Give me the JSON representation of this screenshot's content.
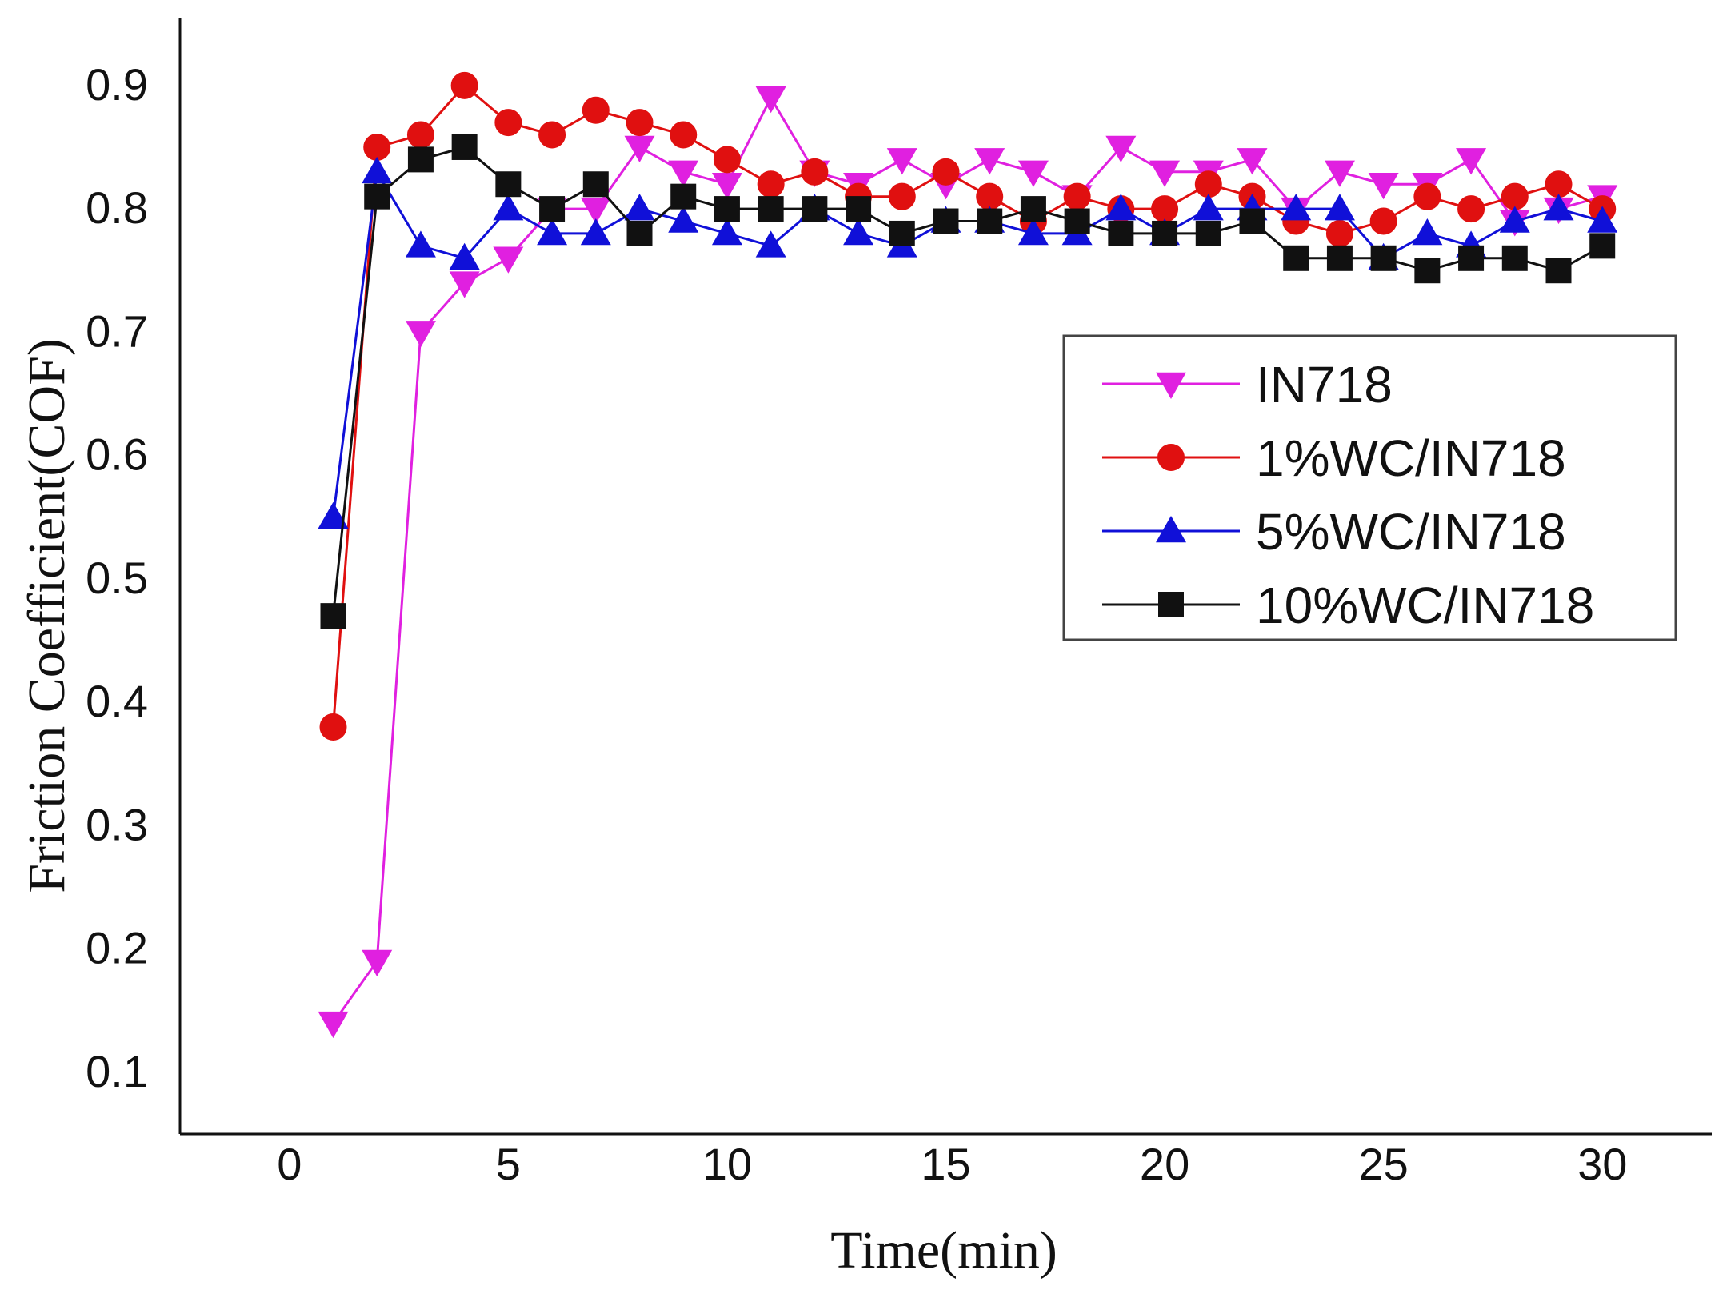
{
  "chart_data": {
    "type": "line",
    "title": "",
    "xlabel": "Time(min)",
    "ylabel": "Friction Coefficient(COF)",
    "xlim": [
      -2.5,
      32.5
    ],
    "ylim": [
      0.05,
      0.955
    ],
    "x_ticks": [
      0,
      5,
      10,
      15,
      20,
      25,
      30
    ],
    "y_ticks": [
      0.1,
      0.2,
      0.3,
      0.4,
      0.5,
      0.6,
      0.7,
      0.8,
      0.9
    ],
    "x_tick_labels": [
      "0",
      "5",
      "10",
      "15",
      "20",
      "25",
      "30"
    ],
    "y_tick_labels": [
      "0.1",
      "0.2",
      "0.3",
      "0.4",
      "0.5",
      "0.6",
      "0.7",
      "0.8",
      "0.9"
    ],
    "grid": false,
    "legend_position": "center-right",
    "x": [
      1,
      2,
      3,
      4,
      5,
      6,
      7,
      8,
      9,
      10,
      11,
      12,
      13,
      14,
      15,
      16,
      17,
      18,
      19,
      20,
      21,
      22,
      23,
      24,
      25,
      26,
      27,
      28,
      29,
      30
    ],
    "series": [
      {
        "name": "IN718",
        "color": "#e020e0",
        "marker": "triangle-down",
        "values": [
          0.14,
          0.19,
          0.7,
          0.74,
          0.76,
          0.8,
          0.8,
          0.85,
          0.83,
          0.82,
          0.89,
          0.83,
          0.82,
          0.84,
          0.82,
          0.84,
          0.83,
          0.81,
          0.85,
          0.83,
          0.83,
          0.84,
          0.8,
          0.83,
          0.82,
          0.82,
          0.84,
          0.79,
          0.8,
          0.81
        ]
      },
      {
        "name": "1%WC/IN718",
        "color": "#e01010",
        "marker": "circle",
        "values": [
          0.38,
          0.85,
          0.86,
          0.9,
          0.87,
          0.86,
          0.88,
          0.87,
          0.86,
          0.84,
          0.82,
          0.83,
          0.81,
          0.81,
          0.83,
          0.81,
          0.79,
          0.81,
          0.8,
          0.8,
          0.82,
          0.81,
          0.79,
          0.78,
          0.79,
          0.81,
          0.8,
          0.81,
          0.82,
          0.8
        ]
      },
      {
        "name": "5%WC/IN718",
        "color": "#1010d8",
        "marker": "triangle-up",
        "values": [
          0.55,
          0.83,
          0.77,
          0.76,
          0.8,
          0.78,
          0.78,
          0.8,
          0.79,
          0.78,
          0.77,
          0.8,
          0.78,
          0.77,
          0.79,
          0.79,
          0.78,
          0.78,
          0.8,
          0.78,
          0.8,
          0.8,
          0.8,
          0.8,
          0.76,
          0.78,
          0.77,
          0.79,
          0.8,
          0.79
        ]
      },
      {
        "name": "10%WC/IN718",
        "color": "#111111",
        "marker": "square",
        "values": [
          0.47,
          0.81,
          0.84,
          0.85,
          0.82,
          0.8,
          0.82,
          0.78,
          0.81,
          0.8,
          0.8,
          0.8,
          0.8,
          0.78,
          0.79,
          0.79,
          0.8,
          0.79,
          0.78,
          0.78,
          0.78,
          0.79,
          0.76,
          0.76,
          0.76,
          0.75,
          0.76,
          0.76,
          0.75,
          0.77
        ]
      }
    ]
  }
}
